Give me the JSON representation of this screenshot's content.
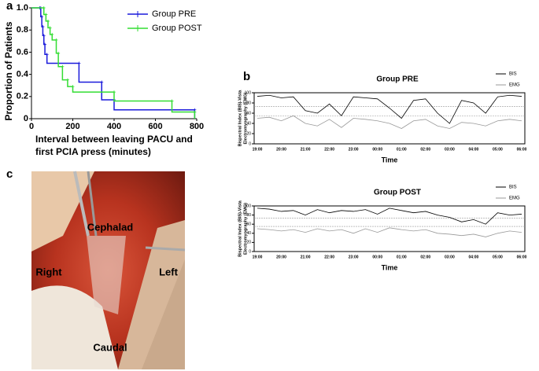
{
  "panels": {
    "a": "a",
    "b": "b",
    "c": "c"
  },
  "photo": {
    "labels": [
      "Cephalad",
      "Right",
      "Left",
      "Caudal"
    ]
  },
  "chart_data": [
    {
      "type": "line",
      "step": "after",
      "x_label": [
        "Interval between leaving PACU and",
        "first PCIA press (minutes)"
      ],
      "y_label": "Proportion of Patients",
      "xlim": [
        0,
        800
      ],
      "xticks": [
        0,
        200,
        400,
        600,
        800
      ],
      "ylim": [
        0,
        1
      ],
      "yticks": [
        0,
        0.2,
        0.4,
        0.6,
        0.8,
        {
          "value": 1,
          "label": "1.0"
        }
      ],
      "legend": "upper right",
      "series": [
        {
          "name": "Group PRE",
          "color": "#1a1adb",
          "x": [
            0,
            40,
            45,
            50,
            55,
            60,
            65,
            75,
            230,
            340,
            400,
            790
          ],
          "values": [
            1,
            1,
            0.92,
            0.83,
            0.75,
            0.67,
            0.58,
            0.5,
            0.33,
            0.17,
            0.08,
            0
          ]
        },
        {
          "name": "Group POST",
          "color": "#33dd33",
          "x": [
            0,
            60,
            70,
            80,
            90,
            100,
            120,
            130,
            150,
            175,
            200,
            400,
            680,
            790
          ],
          "values": [
            1,
            0.94,
            0.88,
            0.82,
            0.76,
            0.71,
            0.59,
            0.47,
            0.35,
            0.29,
            0.24,
            0.16,
            0.06,
            0
          ]
        }
      ]
    },
    {
      "type": "line",
      "title": "Group PRE",
      "x_label": "Time",
      "y_label": [
        "Bispectral Index (BIS)-Vista",
        "Electromyography (EMG)"
      ],
      "categories": [
        "19:00",
        null,
        "20:00",
        null,
        "21:00",
        null,
        "22:00",
        null,
        "23:00",
        null,
        "00:00",
        null,
        "01:00",
        null,
        "02:00",
        null,
        "03:00",
        null,
        "04:00",
        null,
        "05:00",
        null,
        "06:00"
      ],
      "ylim": [
        0,
        100
      ],
      "yticks": [
        0,
        20,
        40,
        60,
        80,
        100
      ],
      "reference_lines": [
        73,
        55
      ],
      "legend": "upper right",
      "series": [
        {
          "name": "BIS",
          "color": "#000000",
          "values": [
            93,
            95,
            90,
            92,
            65,
            60,
            78,
            55,
            92,
            90,
            88,
            70,
            50,
            85,
            88,
            60,
            40,
            85,
            80,
            60,
            92,
            95,
            93
          ]
        },
        {
          "name": "EMG",
          "color": "#999999",
          "values": [
            50,
            52,
            45,
            55,
            40,
            35,
            48,
            32,
            50,
            48,
            45,
            40,
            30,
            45,
            48,
            35,
            30,
            42,
            40,
            35,
            45,
            48,
            45
          ]
        }
      ]
    },
    {
      "type": "line",
      "title": "Group POST",
      "x_label": "Time",
      "y_label": [
        "Bispectral Index (BIS)-Vista",
        "Electromyography (EMG)"
      ],
      "categories": [
        "19:00",
        null,
        "20:00",
        null,
        "21:00",
        null,
        "22:00",
        null,
        "23:00",
        null,
        "00:00",
        null,
        "01:00",
        null,
        "02:00",
        null,
        "03:00",
        null,
        "04:00",
        null,
        "05:00",
        null,
        "06:00"
      ],
      "ylim": [
        0,
        100
      ],
      "yticks": [
        0,
        20,
        40,
        60,
        80,
        100
      ],
      "reference_lines": [
        73,
        55
      ],
      "legend": "upper right",
      "series": [
        {
          "name": "BIS",
          "color": "#000000",
          "values": [
            95,
            93,
            88,
            90,
            80,
            92,
            85,
            90,
            88,
            92,
            82,
            95,
            90,
            85,
            88,
            80,
            75,
            65,
            70,
            60,
            85,
            80,
            82
          ]
        },
        {
          "name": "EMG",
          "color": "#999999",
          "values": [
            50,
            48,
            45,
            48,
            42,
            50,
            45,
            48,
            40,
            50,
            42,
            52,
            48,
            45,
            48,
            40,
            38,
            35,
            38,
            32,
            40,
            45,
            42
          ]
        }
      ]
    }
  ]
}
